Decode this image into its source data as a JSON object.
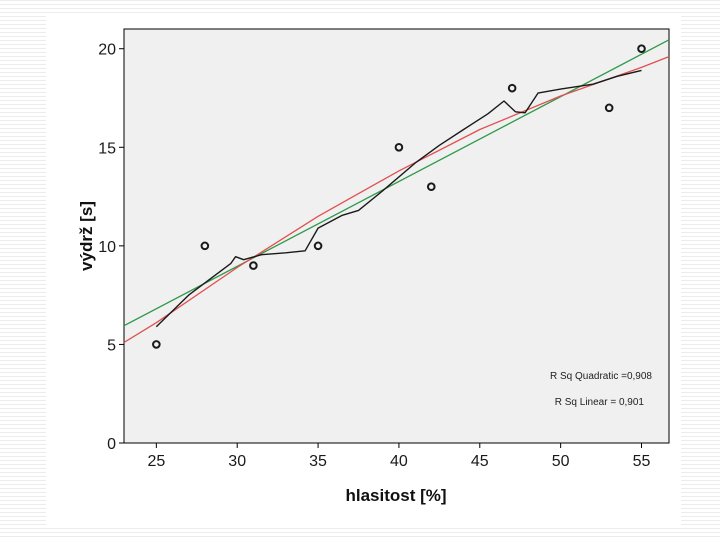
{
  "chart_data": {
    "type": "scatter",
    "title": "",
    "xlabel": "hlasitost [%]",
    "ylabel": "výdrž [s]",
    "xlim": [
      23,
      56.7
    ],
    "ylim": [
      0,
      21
    ],
    "xticks": [
      25,
      30,
      35,
      40,
      45,
      50,
      55
    ],
    "yticks": [
      0,
      5,
      10,
      15,
      20
    ],
    "grid": false,
    "background": "#f0f0f0",
    "points": {
      "x": [
        25,
        28,
        31,
        35,
        40,
        42,
        47,
        53,
        55
      ],
      "y": [
        5,
        10,
        9,
        10,
        15,
        13,
        18,
        17,
        20
      ]
    },
    "fit_lines": [
      {
        "name": "Linear",
        "color": "#2f9a4a",
        "x": [
          23,
          56.7
        ],
        "y": [
          5.95,
          20.45
        ]
      },
      {
        "name": "Quadratic",
        "color": "#e05050",
        "x": [
          23,
          25,
          30,
          35,
          40,
          45,
          50,
          55,
          56.7
        ],
        "y": [
          5.1,
          6.1,
          8.9,
          11.5,
          13.8,
          15.9,
          17.6,
          19.05,
          19.6
        ]
      },
      {
        "name": "Loess",
        "color": "#1a1a1a",
        "x": [
          25,
          27,
          29.6,
          29.9,
          30.4,
          31.5,
          33,
          34.2,
          35,
          36.5,
          37.5,
          39,
          41,
          42.5,
          44,
          45.5,
          46.5,
          47.2,
          47.8,
          48.6,
          50,
          52,
          53.5,
          55
        ],
        "y": [
          5.9,
          7.5,
          9.1,
          9.45,
          9.3,
          9.55,
          9.65,
          9.75,
          10.9,
          11.55,
          11.8,
          12.8,
          14.2,
          15.1,
          15.9,
          16.7,
          17.35,
          16.8,
          16.75,
          17.75,
          17.95,
          18.2,
          18.6,
          18.9
        ]
      }
    ],
    "annotations": [
      "R Sq Quadratic =0,908",
      "R Sq Linear = 0,901"
    ],
    "colors": {
      "points": "#1a1a1a",
      "axis": "#000000"
    }
  }
}
